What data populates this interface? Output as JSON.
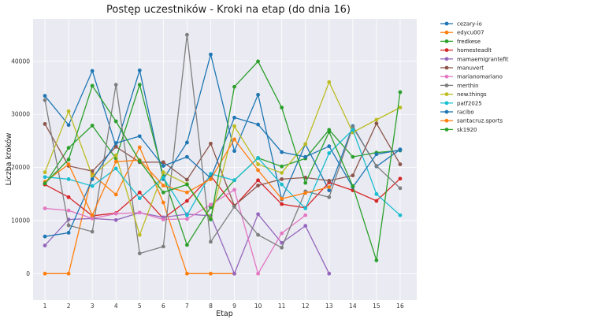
{
  "chart_data": {
    "type": "line",
    "title": "Postęp uczestników - Kroki na etap (do dnia 16)",
    "xlabel": "Etap",
    "ylabel": "Liczba kroków",
    "x": [
      1,
      2,
      3,
      4,
      5,
      6,
      7,
      8,
      9,
      10,
      11,
      12,
      13,
      14,
      15,
      16
    ],
    "xlim": [
      0.5,
      16.7
    ],
    "ylim": [
      -5000,
      48000
    ],
    "yticks": [
      0,
      10000,
      20000,
      30000,
      40000
    ],
    "grid": true,
    "legend_position": "outside-right",
    "series": [
      {
        "name": "cezary-io",
        "color": "#1f77b4",
        "values": [
          33500,
          28000,
          38200,
          24000,
          38300,
          17800,
          24700,
          41300,
          23100,
          33700,
          14000,
          24400,
          15700,
          27800,
          20200,
          23400
        ]
      },
      {
        "name": "edycu007",
        "color": "#ff7f0e",
        "values": [
          0,
          0,
          18700,
          14900,
          23800,
          13400,
          0,
          0,
          0,
          null,
          null,
          null,
          null,
          null,
          null,
          null
        ]
      },
      {
        "name": "fredkese",
        "color": "#2ca02c",
        "values": [
          16800,
          23700,
          27900,
          21700,
          35600,
          18400,
          5400,
          12500,
          17600,
          21800,
          20200,
          21700,
          27100,
          22000,
          22800,
          23200
        ]
      },
      {
        "name": "homesteadlt",
        "color": "#d62728",
        "values": [
          16800,
          14400,
          10900,
          11400,
          15300,
          10400,
          13700,
          18400,
          12700,
          17600,
          13100,
          12400,
          17200,
          15700,
          13700,
          17900
        ]
      },
      {
        "name": "mamaemigrantefit",
        "color": "#9467bd",
        "values": [
          5300,
          10200,
          10400,
          10100,
          11500,
          10600,
          11200,
          10900,
          0,
          11200,
          5800,
          9000,
          0,
          null,
          null,
          null
        ]
      },
      {
        "name": "manuvert",
        "color": "#8c564b",
        "values": [
          28200,
          20300,
          19300,
          23900,
          21000,
          21000,
          17700,
          24500,
          12800,
          16600,
          17800,
          18100,
          17500,
          18500,
          28300,
          20600
        ]
      },
      {
        "name": "marianomariano",
        "color": "#e377c2",
        "values": [
          12300,
          11900,
          10400,
          11300,
          11500,
          10200,
          10300,
          13000,
          15800,
          0,
          7600,
          11000,
          null,
          null,
          null,
          null
        ]
      },
      {
        "name": "merthin",
        "color": "#7f7f7f",
        "values": [
          32700,
          9100,
          7900,
          35600,
          3800,
          5100,
          45000,
          6000,
          12600,
          7300,
          4900,
          15500,
          14400,
          27600,
          20300,
          16100
        ]
      },
      {
        "name": "new.things",
        "color": "#bcbd22",
        "values": [
          19100,
          30600,
          18400,
          22300,
          7300,
          19100,
          16900,
          10400,
          27800,
          20600,
          19000,
          24400,
          36100,
          26600,
          29000,
          31300
        ]
      },
      {
        "name": "patf2025",
        "color": "#17becf",
        "values": [
          18200,
          17800,
          16500,
          19800,
          14200,
          18100,
          11000,
          18800,
          17600,
          21800,
          16800,
          12300,
          22700,
          27100,
          15000,
          11000
        ]
      },
      {
        "name": "racibo",
        "color": "#1f77b4",
        "values": [
          7000,
          7700,
          17800,
          24600,
          25900,
          20300,
          22000,
          18000,
          29400,
          28100,
          22900,
          22000,
          24000,
          16300,
          22500,
          23300
        ]
      },
      {
        "name": "santacruz.sports",
        "color": "#ff7f0e",
        "values": [
          17300,
          20600,
          11000,
          21100,
          21400,
          16600,
          15300,
          17800,
          25300,
          19500,
          14100,
          15200,
          16300,
          null,
          null,
          null
        ]
      },
      {
        "name": "sk1920",
        "color": "#2ca02c",
        "values": [
          17000,
          21500,
          35400,
          28700,
          21200,
          15300,
          16800,
          10200,
          35200,
          40000,
          31300,
          17100,
          26700,
          16500,
          2500,
          34200
        ]
      }
    ]
  }
}
